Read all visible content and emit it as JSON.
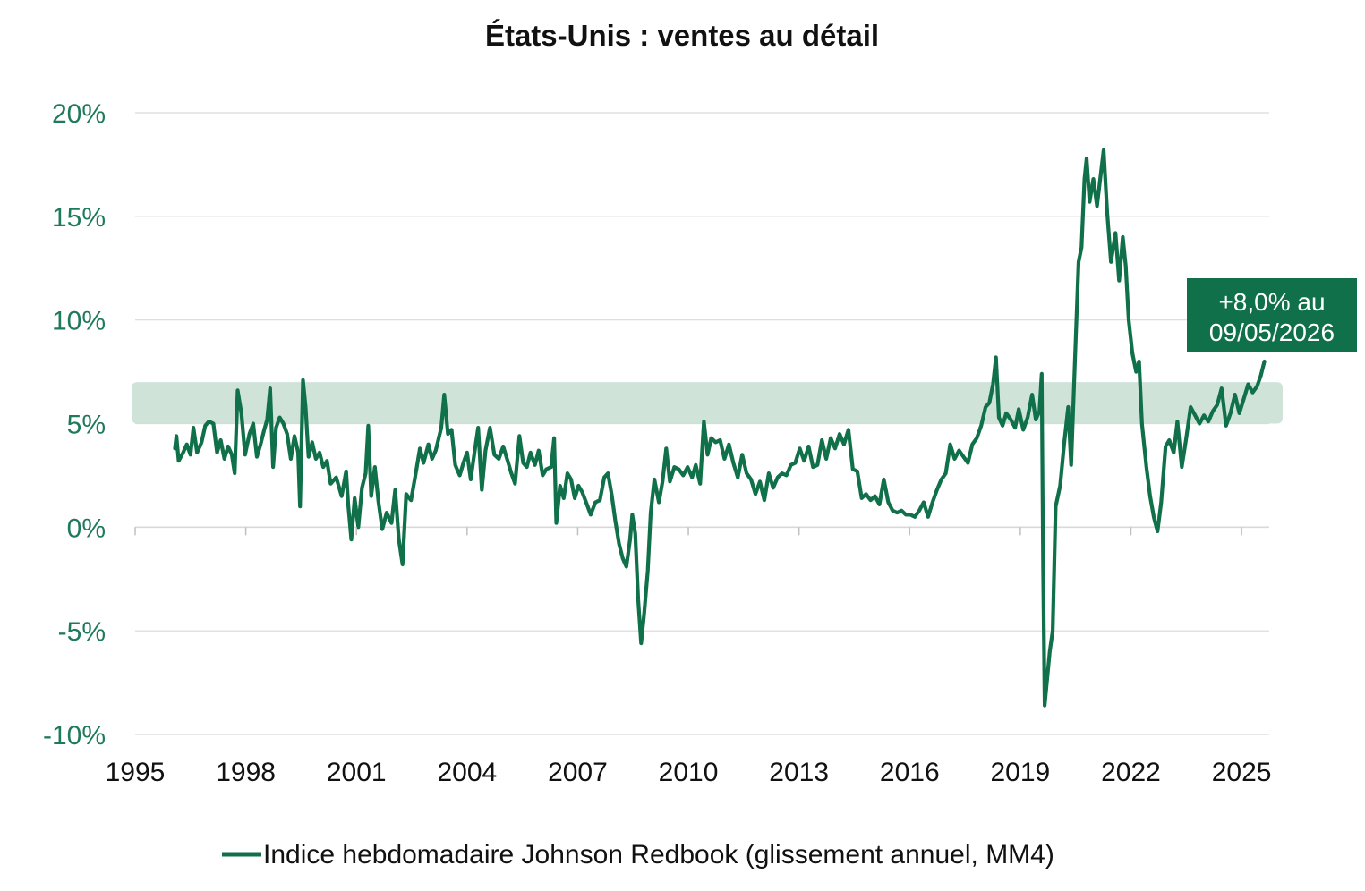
{
  "chart_data": {
    "type": "line",
    "title": "États-Unis : ventes au détail",
    "xlabel": "",
    "ylabel": "",
    "x_ticks": [
      "1995",
      "1998",
      "2001",
      "2004",
      "2007",
      "2010",
      "2013",
      "2016",
      "2019",
      "2022",
      "2025"
    ],
    "x_range": [
      1995.0,
      2025.75
    ],
    "y_ticks": [
      "20%",
      "15%",
      "10%",
      "5%",
      "0%",
      "-5%",
      "-10%"
    ],
    "y_tick_values": [
      20,
      15,
      10,
      5,
      0,
      -5,
      -10
    ],
    "ylim": [
      -10,
      20
    ],
    "grid": "horizontal",
    "shaded_band": {
      "from": 5,
      "to": 7
    },
    "colors": {
      "line": "#10704a",
      "axis_text": "#1f7a5c",
      "band": "#cfe3d9",
      "grid": "#d9d9d9",
      "callout_bg": "#10704a"
    },
    "callout": {
      "line1": "+8,0% au",
      "line2": "09/05/2026"
    },
    "legend": {
      "label": "Indice hebdomadaire Johnson Redbook (glissement annuel, MM4)",
      "position": "bottom"
    },
    "series": [
      {
        "name": "Indice hebdomadaire Johnson Redbook (glissement annuel, MM4)",
        "points": [
          [
            1996.08,
            3.8
          ],
          [
            1996.12,
            4.4
          ],
          [
            1996.18,
            3.2
          ],
          [
            1996.3,
            3.6
          ],
          [
            1996.4,
            4.0
          ],
          [
            1996.5,
            3.5
          ],
          [
            1996.58,
            4.8
          ],
          [
            1996.68,
            3.6
          ],
          [
            1996.8,
            4.1
          ],
          [
            1996.9,
            4.9
          ],
          [
            1997.0,
            5.1
          ],
          [
            1997.12,
            5.0
          ],
          [
            1997.22,
            3.6
          ],
          [
            1997.32,
            4.2
          ],
          [
            1997.42,
            3.3
          ],
          [
            1997.52,
            3.9
          ],
          [
            1997.62,
            3.5
          ],
          [
            1997.7,
            2.6
          ],
          [
            1997.78,
            6.6
          ],
          [
            1997.88,
            5.5
          ],
          [
            1997.98,
            3.5
          ],
          [
            1998.1,
            4.5
          ],
          [
            1998.2,
            5.0
          ],
          [
            1998.3,
            3.4
          ],
          [
            1998.4,
            4.0
          ],
          [
            1998.5,
            4.7
          ],
          [
            1998.58,
            5.2
          ],
          [
            1998.66,
            6.7
          ],
          [
            1998.74,
            2.9
          ],
          [
            1998.82,
            4.8
          ],
          [
            1998.92,
            5.3
          ],
          [
            1999.02,
            5.0
          ],
          [
            1999.12,
            4.5
          ],
          [
            1999.22,
            3.3
          ],
          [
            1999.32,
            4.4
          ],
          [
            1999.42,
            3.6
          ],
          [
            1999.47,
            1.0
          ],
          [
            1999.55,
            7.1
          ],
          [
            1999.62,
            5.8
          ],
          [
            1999.7,
            3.4
          ],
          [
            1999.8,
            4.1
          ],
          [
            1999.9,
            3.3
          ],
          [
            2000.0,
            3.6
          ],
          [
            2000.1,
            2.9
          ],
          [
            2000.2,
            3.2
          ],
          [
            2000.3,
            2.1
          ],
          [
            2000.45,
            2.4
          ],
          [
            2000.6,
            1.5
          ],
          [
            2000.72,
            2.7
          ],
          [
            2000.78,
            1.0
          ],
          [
            2000.86,
            -0.6
          ],
          [
            2000.95,
            1.4
          ],
          [
            2001.05,
            0.0
          ],
          [
            2001.15,
            1.9
          ],
          [
            2001.25,
            2.6
          ],
          [
            2001.32,
            4.9
          ],
          [
            2001.4,
            1.5
          ],
          [
            2001.5,
            2.9
          ],
          [
            2001.6,
            1.2
          ],
          [
            2001.7,
            -0.1
          ],
          [
            2001.82,
            0.7
          ],
          [
            2001.95,
            0.2
          ],
          [
            2002.05,
            1.8
          ],
          [
            2002.15,
            -0.6
          ],
          [
            2002.25,
            -1.8
          ],
          [
            2002.35,
            1.6
          ],
          [
            2002.48,
            1.3
          ],
          [
            2002.6,
            2.5
          ],
          [
            2002.72,
            3.8
          ],
          [
            2002.82,
            3.1
          ],
          [
            2002.95,
            4.0
          ],
          [
            2003.05,
            3.3
          ],
          [
            2003.15,
            3.7
          ],
          [
            2003.3,
            4.8
          ],
          [
            2003.38,
            6.4
          ],
          [
            2003.48,
            4.5
          ],
          [
            2003.58,
            4.7
          ],
          [
            2003.68,
            3.0
          ],
          [
            2003.8,
            2.5
          ],
          [
            2003.9,
            3.1
          ],
          [
            2004.0,
            3.6
          ],
          [
            2004.1,
            2.3
          ],
          [
            2004.2,
            3.6
          ],
          [
            2004.3,
            4.8
          ],
          [
            2004.4,
            1.8
          ],
          [
            2004.5,
            3.7
          ],
          [
            2004.62,
            4.8
          ],
          [
            2004.74,
            3.5
          ],
          [
            2004.86,
            3.3
          ],
          [
            2004.98,
            3.9
          ],
          [
            2005.1,
            3.2
          ],
          [
            2005.2,
            2.6
          ],
          [
            2005.3,
            2.1
          ],
          [
            2005.42,
            4.4
          ],
          [
            2005.52,
            3.1
          ],
          [
            2005.62,
            2.9
          ],
          [
            2005.72,
            3.6
          ],
          [
            2005.84,
            3.0
          ],
          [
            2005.94,
            3.7
          ],
          [
            2006.05,
            2.5
          ],
          [
            2006.15,
            2.8
          ],
          [
            2006.28,
            2.9
          ],
          [
            2006.36,
            4.3
          ],
          [
            2006.42,
            0.2
          ],
          [
            2006.52,
            2.0
          ],
          [
            2006.62,
            1.4
          ],
          [
            2006.72,
            2.6
          ],
          [
            2006.82,
            2.3
          ],
          [
            2006.92,
            1.4
          ],
          [
            2007.02,
            2.0
          ],
          [
            2007.12,
            1.7
          ],
          [
            2007.25,
            1.1
          ],
          [
            2007.35,
            0.6
          ],
          [
            2007.48,
            1.2
          ],
          [
            2007.6,
            1.3
          ],
          [
            2007.72,
            2.4
          ],
          [
            2007.82,
            2.6
          ],
          [
            2007.92,
            1.6
          ],
          [
            2008.02,
            0.3
          ],
          [
            2008.12,
            -0.8
          ],
          [
            2008.22,
            -1.5
          ],
          [
            2008.32,
            -1.9
          ],
          [
            2008.42,
            -0.6
          ],
          [
            2008.48,
            0.6
          ],
          [
            2008.56,
            -0.3
          ],
          [
            2008.64,
            -3.5
          ],
          [
            2008.72,
            -5.6
          ],
          [
            2008.8,
            -4.2
          ],
          [
            2008.9,
            -2.1
          ],
          [
            2008.98,
            0.7
          ],
          [
            2009.08,
            2.3
          ],
          [
            2009.2,
            1.2
          ],
          [
            2009.3,
            2.2
          ],
          [
            2009.4,
            3.8
          ],
          [
            2009.5,
            2.2
          ],
          [
            2009.62,
            2.9
          ],
          [
            2009.74,
            2.8
          ],
          [
            2009.86,
            2.5
          ],
          [
            2009.98,
            2.9
          ],
          [
            2010.1,
            2.4
          ],
          [
            2010.2,
            3.0
          ],
          [
            2010.32,
            2.1
          ],
          [
            2010.42,
            5.1
          ],
          [
            2010.52,
            3.5
          ],
          [
            2010.62,
            4.3
          ],
          [
            2010.74,
            4.1
          ],
          [
            2010.86,
            4.2
          ],
          [
            2010.98,
            3.3
          ],
          [
            2011.1,
            4.0
          ],
          [
            2011.22,
            3.1
          ],
          [
            2011.34,
            2.4
          ],
          [
            2011.46,
            3.5
          ],
          [
            2011.58,
            2.6
          ],
          [
            2011.7,
            2.3
          ],
          [
            2011.82,
            1.6
          ],
          [
            2011.94,
            2.2
          ],
          [
            2012.06,
            1.3
          ],
          [
            2012.18,
            2.6
          ],
          [
            2012.3,
            1.9
          ],
          [
            2012.42,
            2.4
          ],
          [
            2012.54,
            2.6
          ],
          [
            2012.66,
            2.5
          ],
          [
            2012.78,
            3.0
          ],
          [
            2012.9,
            3.1
          ],
          [
            2013.02,
            3.8
          ],
          [
            2013.14,
            3.2
          ],
          [
            2013.26,
            3.9
          ],
          [
            2013.38,
            2.9
          ],
          [
            2013.5,
            3.0
          ],
          [
            2013.62,
            4.2
          ],
          [
            2013.74,
            3.3
          ],
          [
            2013.86,
            4.3
          ],
          [
            2013.98,
            3.8
          ],
          [
            2014.1,
            4.5
          ],
          [
            2014.22,
            4.0
          ],
          [
            2014.34,
            4.7
          ],
          [
            2014.46,
            2.8
          ],
          [
            2014.58,
            2.7
          ],
          [
            2014.7,
            1.4
          ],
          [
            2014.82,
            1.6
          ],
          [
            2014.94,
            1.3
          ],
          [
            2015.06,
            1.5
          ],
          [
            2015.18,
            1.1
          ],
          [
            2015.3,
            2.3
          ],
          [
            2015.42,
            1.2
          ],
          [
            2015.54,
            0.8
          ],
          [
            2015.66,
            0.7
          ],
          [
            2015.78,
            0.8
          ],
          [
            2015.9,
            0.6
          ],
          [
            2016.02,
            0.6
          ],
          [
            2016.14,
            0.5
          ],
          [
            2016.26,
            0.8
          ],
          [
            2016.38,
            1.2
          ],
          [
            2016.5,
            0.5
          ],
          [
            2016.62,
            1.2
          ],
          [
            2016.74,
            1.8
          ],
          [
            2016.86,
            2.3
          ],
          [
            2016.98,
            2.6
          ],
          [
            2017.1,
            4.0
          ],
          [
            2017.22,
            3.3
          ],
          [
            2017.34,
            3.7
          ],
          [
            2017.46,
            3.4
          ],
          [
            2017.58,
            3.1
          ],
          [
            2017.7,
            4.0
          ],
          [
            2017.82,
            4.3
          ],
          [
            2017.94,
            4.9
          ],
          [
            2018.06,
            5.8
          ],
          [
            2018.16,
            6.0
          ],
          [
            2018.26,
            6.9
          ],
          [
            2018.34,
            8.2
          ],
          [
            2018.42,
            5.3
          ],
          [
            2018.52,
            4.9
          ],
          [
            2018.62,
            5.5
          ],
          [
            2018.74,
            5.2
          ],
          [
            2018.86,
            4.8
          ],
          [
            2018.96,
            5.7
          ],
          [
            2019.08,
            4.7
          ],
          [
            2019.2,
            5.3
          ],
          [
            2019.32,
            6.4
          ],
          [
            2019.42,
            5.2
          ],
          [
            2019.52,
            5.6
          ],
          [
            2019.58,
            7.4
          ],
          [
            2019.62,
            -2.0
          ],
          [
            2019.66,
            -8.6
          ],
          [
            2019.72,
            -7.5
          ],
          [
            2019.8,
            -6.0
          ],
          [
            2019.88,
            -5.0
          ],
          [
            2019.96,
            1.0
          ],
          [
            2020.08,
            2.0
          ],
          [
            2020.2,
            4.2
          ],
          [
            2020.3,
            5.8
          ],
          [
            2020.38,
            3.0
          ],
          [
            2020.48,
            8.0
          ],
          [
            2020.58,
            12.8
          ],
          [
            2020.66,
            13.5
          ],
          [
            2020.74,
            16.8
          ],
          [
            2020.8,
            17.8
          ],
          [
            2020.88,
            15.7
          ],
          [
            2020.98,
            16.8
          ],
          [
            2021.08,
            15.5
          ],
          [
            2021.18,
            17.0
          ],
          [
            2021.26,
            18.2
          ],
          [
            2021.36,
            15.1
          ],
          [
            2021.46,
            12.8
          ],
          [
            2021.58,
            14.2
          ],
          [
            2021.68,
            11.9
          ],
          [
            2021.78,
            14.0
          ],
          [
            2021.86,
            12.6
          ],
          [
            2021.94,
            10.0
          ],
          [
            2022.04,
            8.4
          ],
          [
            2022.14,
            7.5
          ],
          [
            2022.22,
            8.0
          ],
          [
            2022.3,
            5.0
          ],
          [
            2022.42,
            2.9
          ],
          [
            2022.52,
            1.5
          ],
          [
            2022.62,
            0.5
          ],
          [
            2022.72,
            -0.2
          ],
          [
            2022.82,
            1.2
          ],
          [
            2022.94,
            3.9
          ],
          [
            2023.04,
            4.2
          ],
          [
            2023.16,
            3.6
          ],
          [
            2023.26,
            5.1
          ],
          [
            2023.38,
            2.9
          ],
          [
            2023.5,
            4.3
          ],
          [
            2023.62,
            5.8
          ],
          [
            2023.74,
            5.4
          ],
          [
            2023.86,
            5.0
          ],
          [
            2023.98,
            5.4
          ],
          [
            2024.1,
            5.1
          ],
          [
            2024.22,
            5.6
          ],
          [
            2024.34,
            5.9
          ],
          [
            2024.46,
            6.7
          ],
          [
            2024.58,
            4.9
          ],
          [
            2024.7,
            5.5
          ],
          [
            2024.82,
            6.4
          ],
          [
            2024.94,
            5.5
          ],
          [
            2025.06,
            6.2
          ],
          [
            2025.18,
            6.9
          ],
          [
            2025.3,
            6.5
          ],
          [
            2025.42,
            6.8
          ],
          [
            2025.52,
            7.3
          ],
          [
            2025.62,
            8.0
          ]
        ]
      }
    ]
  }
}
